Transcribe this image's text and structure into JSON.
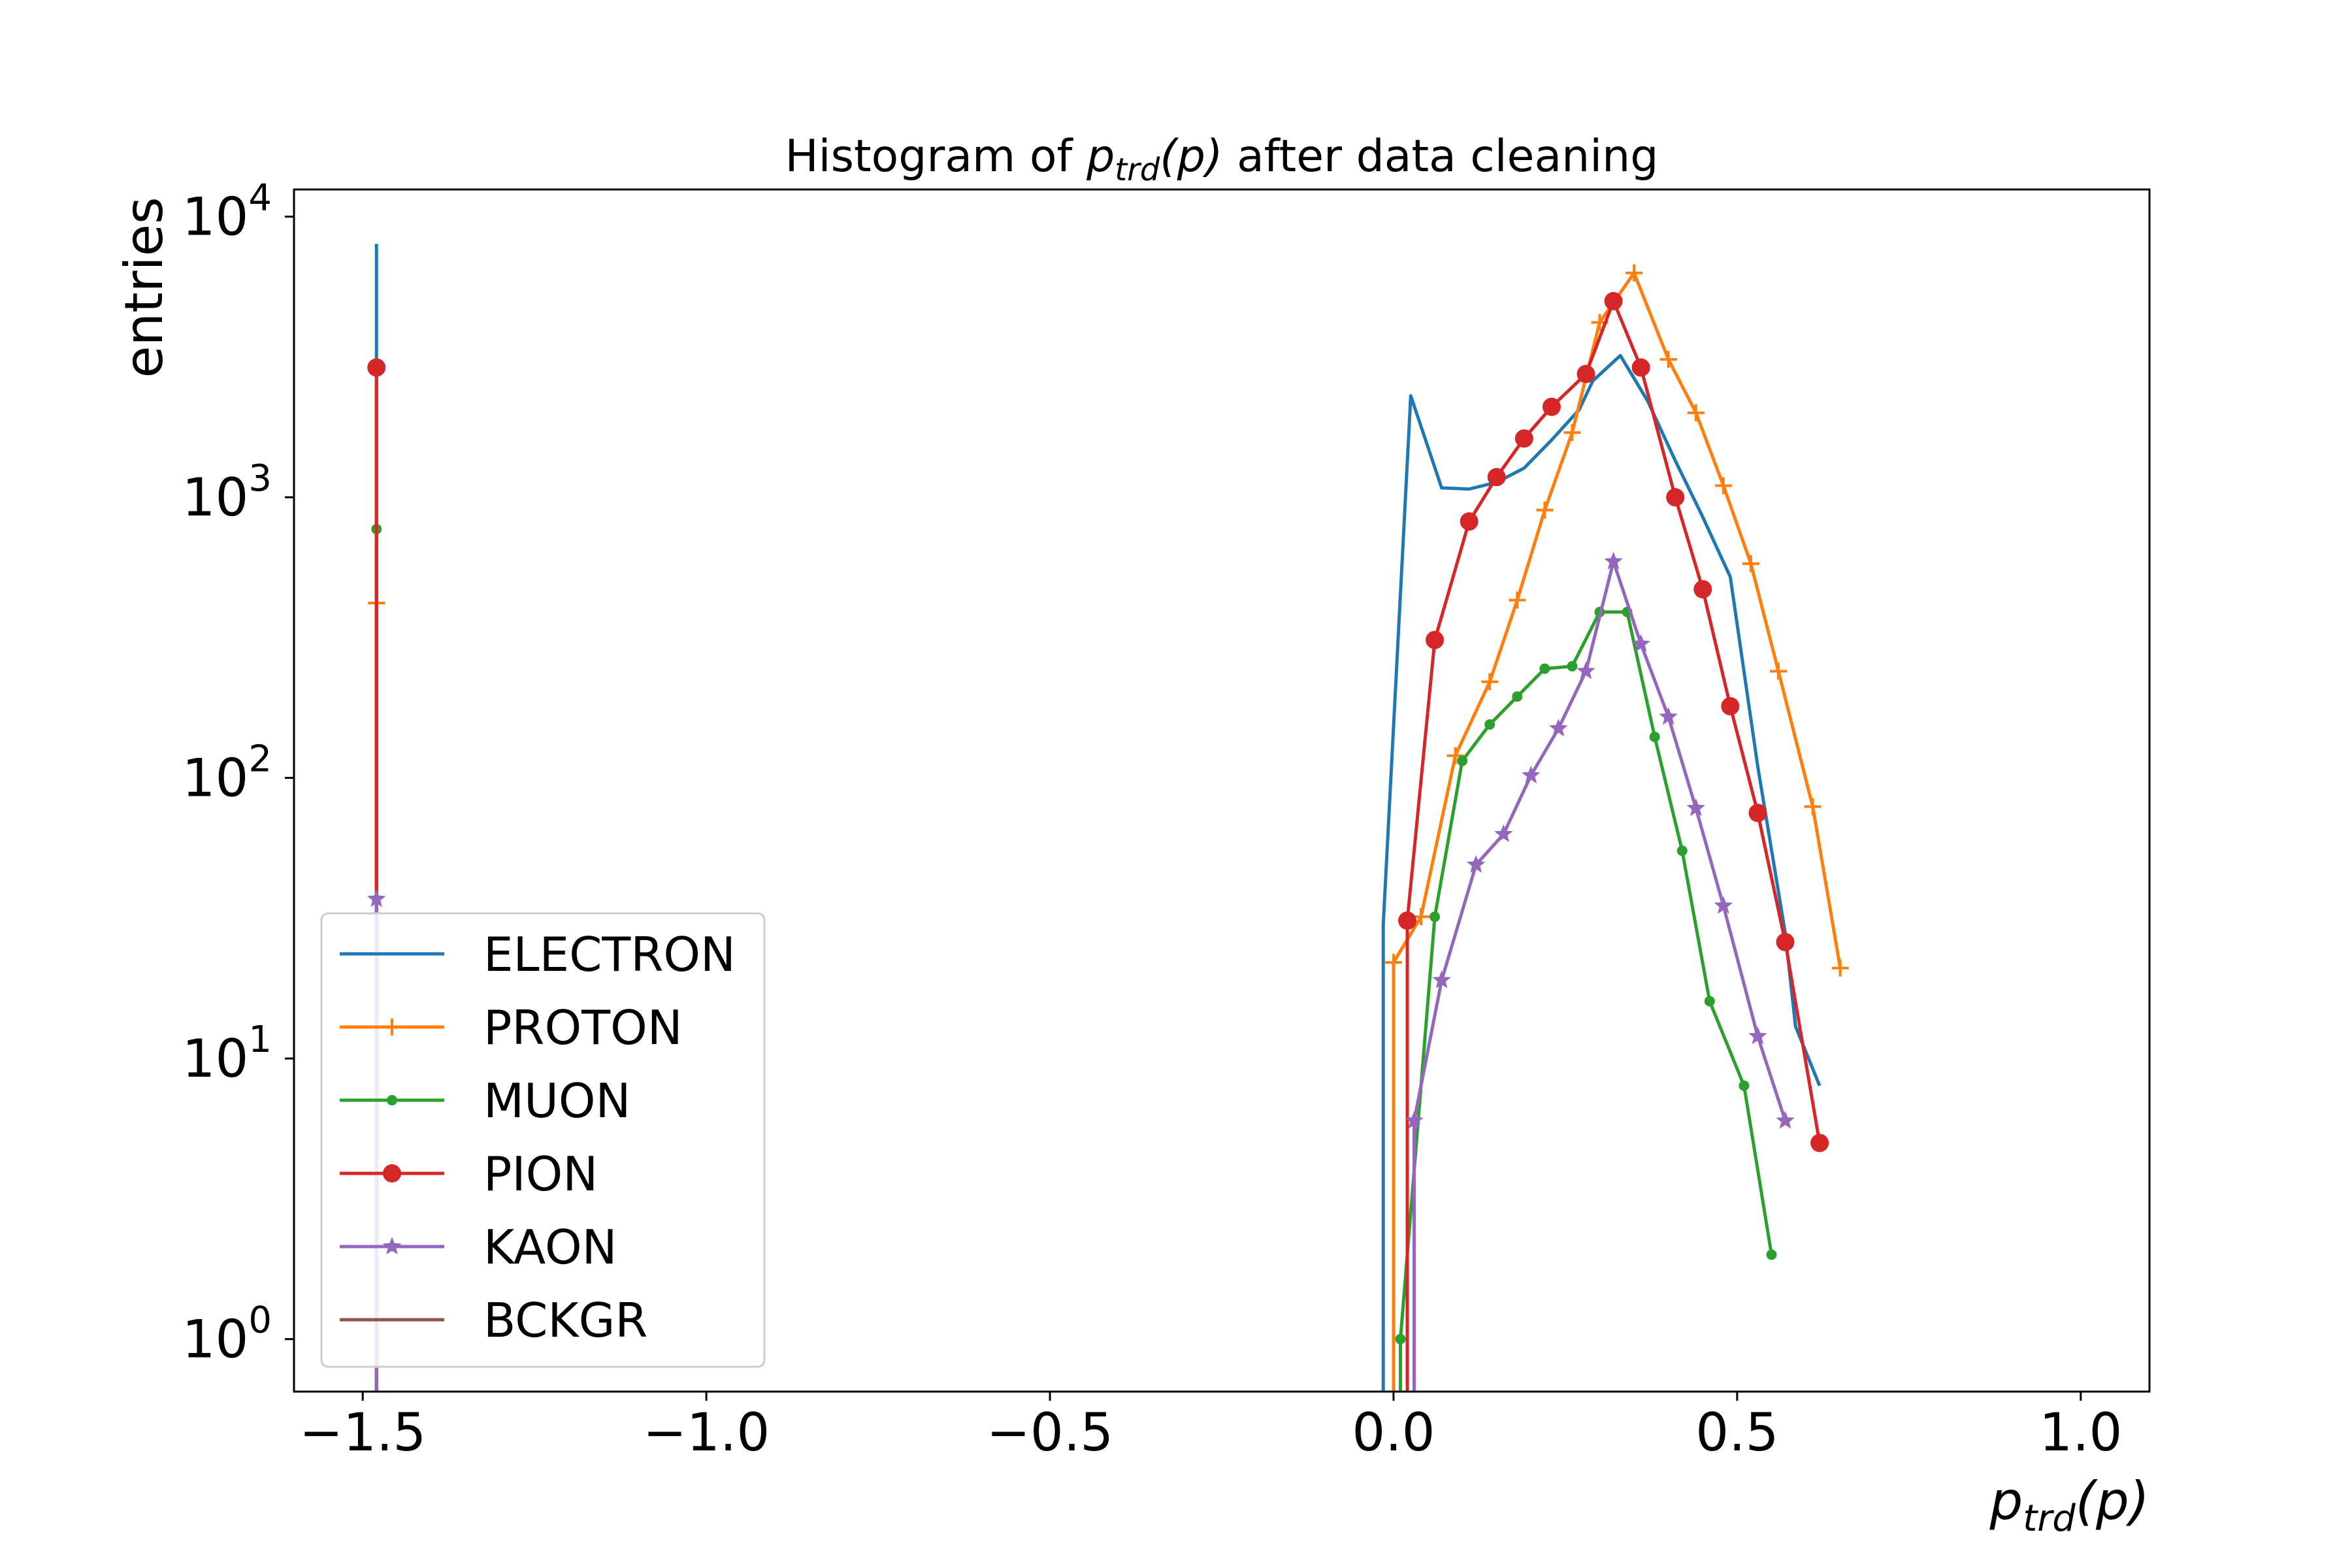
{
  "chart_data": {
    "type": "line",
    "title_parts": {
      "prefix": "Histogram of ",
      "var": "p",
      "sub": "trd",
      "arg": "(p)",
      "suffix": " after data cleaning"
    },
    "xlabel_parts": {
      "var": "p",
      "sub": "trd",
      "arg": "(p)"
    },
    "ylabel": "entries",
    "xlim": [
      -1.6,
      1.1
    ],
    "ylim": [
      0.65,
      12500
    ],
    "yscale": "log",
    "x_ticks": [
      -1.5,
      -1.0,
      -0.5,
      0.0,
      0.5,
      1.0
    ],
    "x_tick_labels": [
      "−1.5",
      "−1.0",
      "−0.5",
      "0.0",
      "0.5",
      "1.0"
    ],
    "y_ticks": [
      1,
      10,
      100,
      1000,
      10000
    ],
    "y_tick_labels": [
      {
        "base": "10",
        "exp": "0"
      },
      {
        "base": "10",
        "exp": "1"
      },
      {
        "base": "10",
        "exp": "2"
      },
      {
        "base": "10",
        "exp": "3"
      },
      {
        "base": "10",
        "exp": "4"
      }
    ],
    "grid": false,
    "legend_position": "lower-left",
    "series": [
      {
        "name": "ELECTRON",
        "color": "#1f77b4",
        "marker": "none",
        "spike": {
          "x": -1.48,
          "y": 8000
        },
        "x": [
          -0.015,
          0.025,
          0.07,
          0.11,
          0.15,
          0.19,
          0.23,
          0.27,
          0.29,
          0.33,
          0.37,
          0.41,
          0.45,
          0.49,
          0.53,
          0.57,
          0.585,
          0.62
        ],
        "y": [
          30,
          2300,
          1080,
          1070,
          1130,
          1270,
          1600,
          2050,
          2600,
          3200,
          2200,
          1350,
          850,
          520,
          110,
          28,
          13,
          8
        ]
      },
      {
        "name": "PROTON",
        "color": "#ff7f0e",
        "marker": "plus",
        "spike": {
          "x": -1.48,
          "y": 420
        },
        "x": [
          0.0,
          0.04,
          0.09,
          0.14,
          0.18,
          0.22,
          0.26,
          0.3,
          0.35,
          0.4,
          0.44,
          0.48,
          0.52,
          0.56,
          0.61,
          0.65
        ],
        "y": [
          22,
          32,
          120,
          220,
          430,
          900,
          1700,
          4200,
          6300,
          3100,
          2000,
          1100,
          580,
          240,
          79,
          21
        ]
      },
      {
        "name": "MUON",
        "color": "#2ca02c",
        "marker": "dot",
        "spike": {
          "x": -1.48,
          "y": 770
        },
        "x": [
          0.01,
          0.06,
          0.1,
          0.14,
          0.18,
          0.22,
          0.26,
          0.3,
          0.34,
          0.38,
          0.42,
          0.46,
          0.51,
          0.55
        ],
        "y": [
          1,
          32,
          115,
          155,
          195,
          245,
          250,
          390,
          390,
          140,
          55,
          16,
          8,
          2
        ]
      },
      {
        "name": "PION",
        "color": "#d62728",
        "marker": "circle",
        "spike": {
          "x": -1.48,
          "y": 2900
        },
        "x": [
          0.02,
          0.06,
          0.11,
          0.15,
          0.19,
          0.23,
          0.28,
          0.32,
          0.36,
          0.41,
          0.45,
          0.49,
          0.53,
          0.57,
          0.62
        ],
        "y": [
          31,
          310,
          820,
          1180,
          1620,
          2100,
          2750,
          5000,
          2900,
          1000,
          470,
          180,
          75,
          26,
          5
        ]
      },
      {
        "name": "KAON",
        "color": "#9467bd",
        "marker": "star",
        "spike": {
          "x": -1.48,
          "y": 37
        },
        "x": [
          0.03,
          0.07,
          0.12,
          0.16,
          0.2,
          0.24,
          0.28,
          0.32,
          0.36,
          0.4,
          0.44,
          0.48,
          0.53,
          0.57
        ],
        "y": [
          6,
          19,
          49,
          63,
          102,
          150,
          240,
          590,
          300,
          165,
          78,
          35,
          12,
          6
        ]
      },
      {
        "name": "BCKGR",
        "color": "#8c564b",
        "marker": "none",
        "spike": null,
        "x": [],
        "y": []
      }
    ]
  }
}
